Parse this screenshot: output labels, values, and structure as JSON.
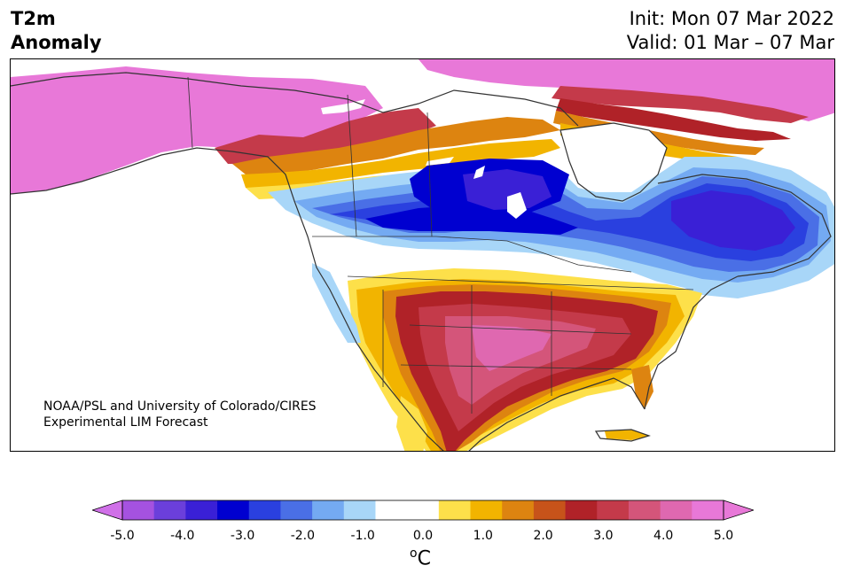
{
  "header": {
    "title_line1": "T2m",
    "title_line2": "Anomaly",
    "init_text": "Init: Mon 07 Mar 2022",
    "valid_text": "Valid: 01 Mar – 07 Mar"
  },
  "credit": {
    "line1": "NOAA/PSL and University of Colorado/CIRES",
    "line2": "Experimental LIM Forecast"
  },
  "colorbar": {
    "colors": [
      "#a552e0",
      "#6b3fdb",
      "#3a20d6",
      "#0000d0",
      "#2a40df",
      "#4a6fe6",
      "#74aaf2",
      "#a8d6f8",
      "#ffffff",
      "#ffffff",
      "#fde04a",
      "#f2b400",
      "#dd8410",
      "#c7531a",
      "#b02228",
      "#c43a4a",
      "#d4557a",
      "#df68b0",
      "#e878d8"
    ],
    "extend_low_color": "#d070e8",
    "extend_high_color": "#e878d8",
    "tick_labels": [
      "-5.0",
      "-4.0",
      "-3.0",
      "-2.0",
      "-1.0",
      "0.0",
      "1.0",
      "2.0",
      "3.0",
      "4.0",
      "5.0"
    ],
    "unit_sup": "o",
    "unit": "C"
  },
  "palette": {
    "pink": "#e878d8",
    "magenta_red": "#c43a6a",
    "rose": "#d4557a",
    "dark_red": "#b02228",
    "orange_red": "#c7531a",
    "orange": "#dd8410",
    "gold": "#f2b400",
    "yellow": "#fde04a",
    "pale_blue": "#a8d6f8",
    "light_blue": "#74aaf2",
    "blue": "#4a6fe6",
    "royal_blue": "#2a40df",
    "deep_blue": "#0000d0",
    "indigo": "#3a20d6",
    "coast": "#333333"
  }
}
